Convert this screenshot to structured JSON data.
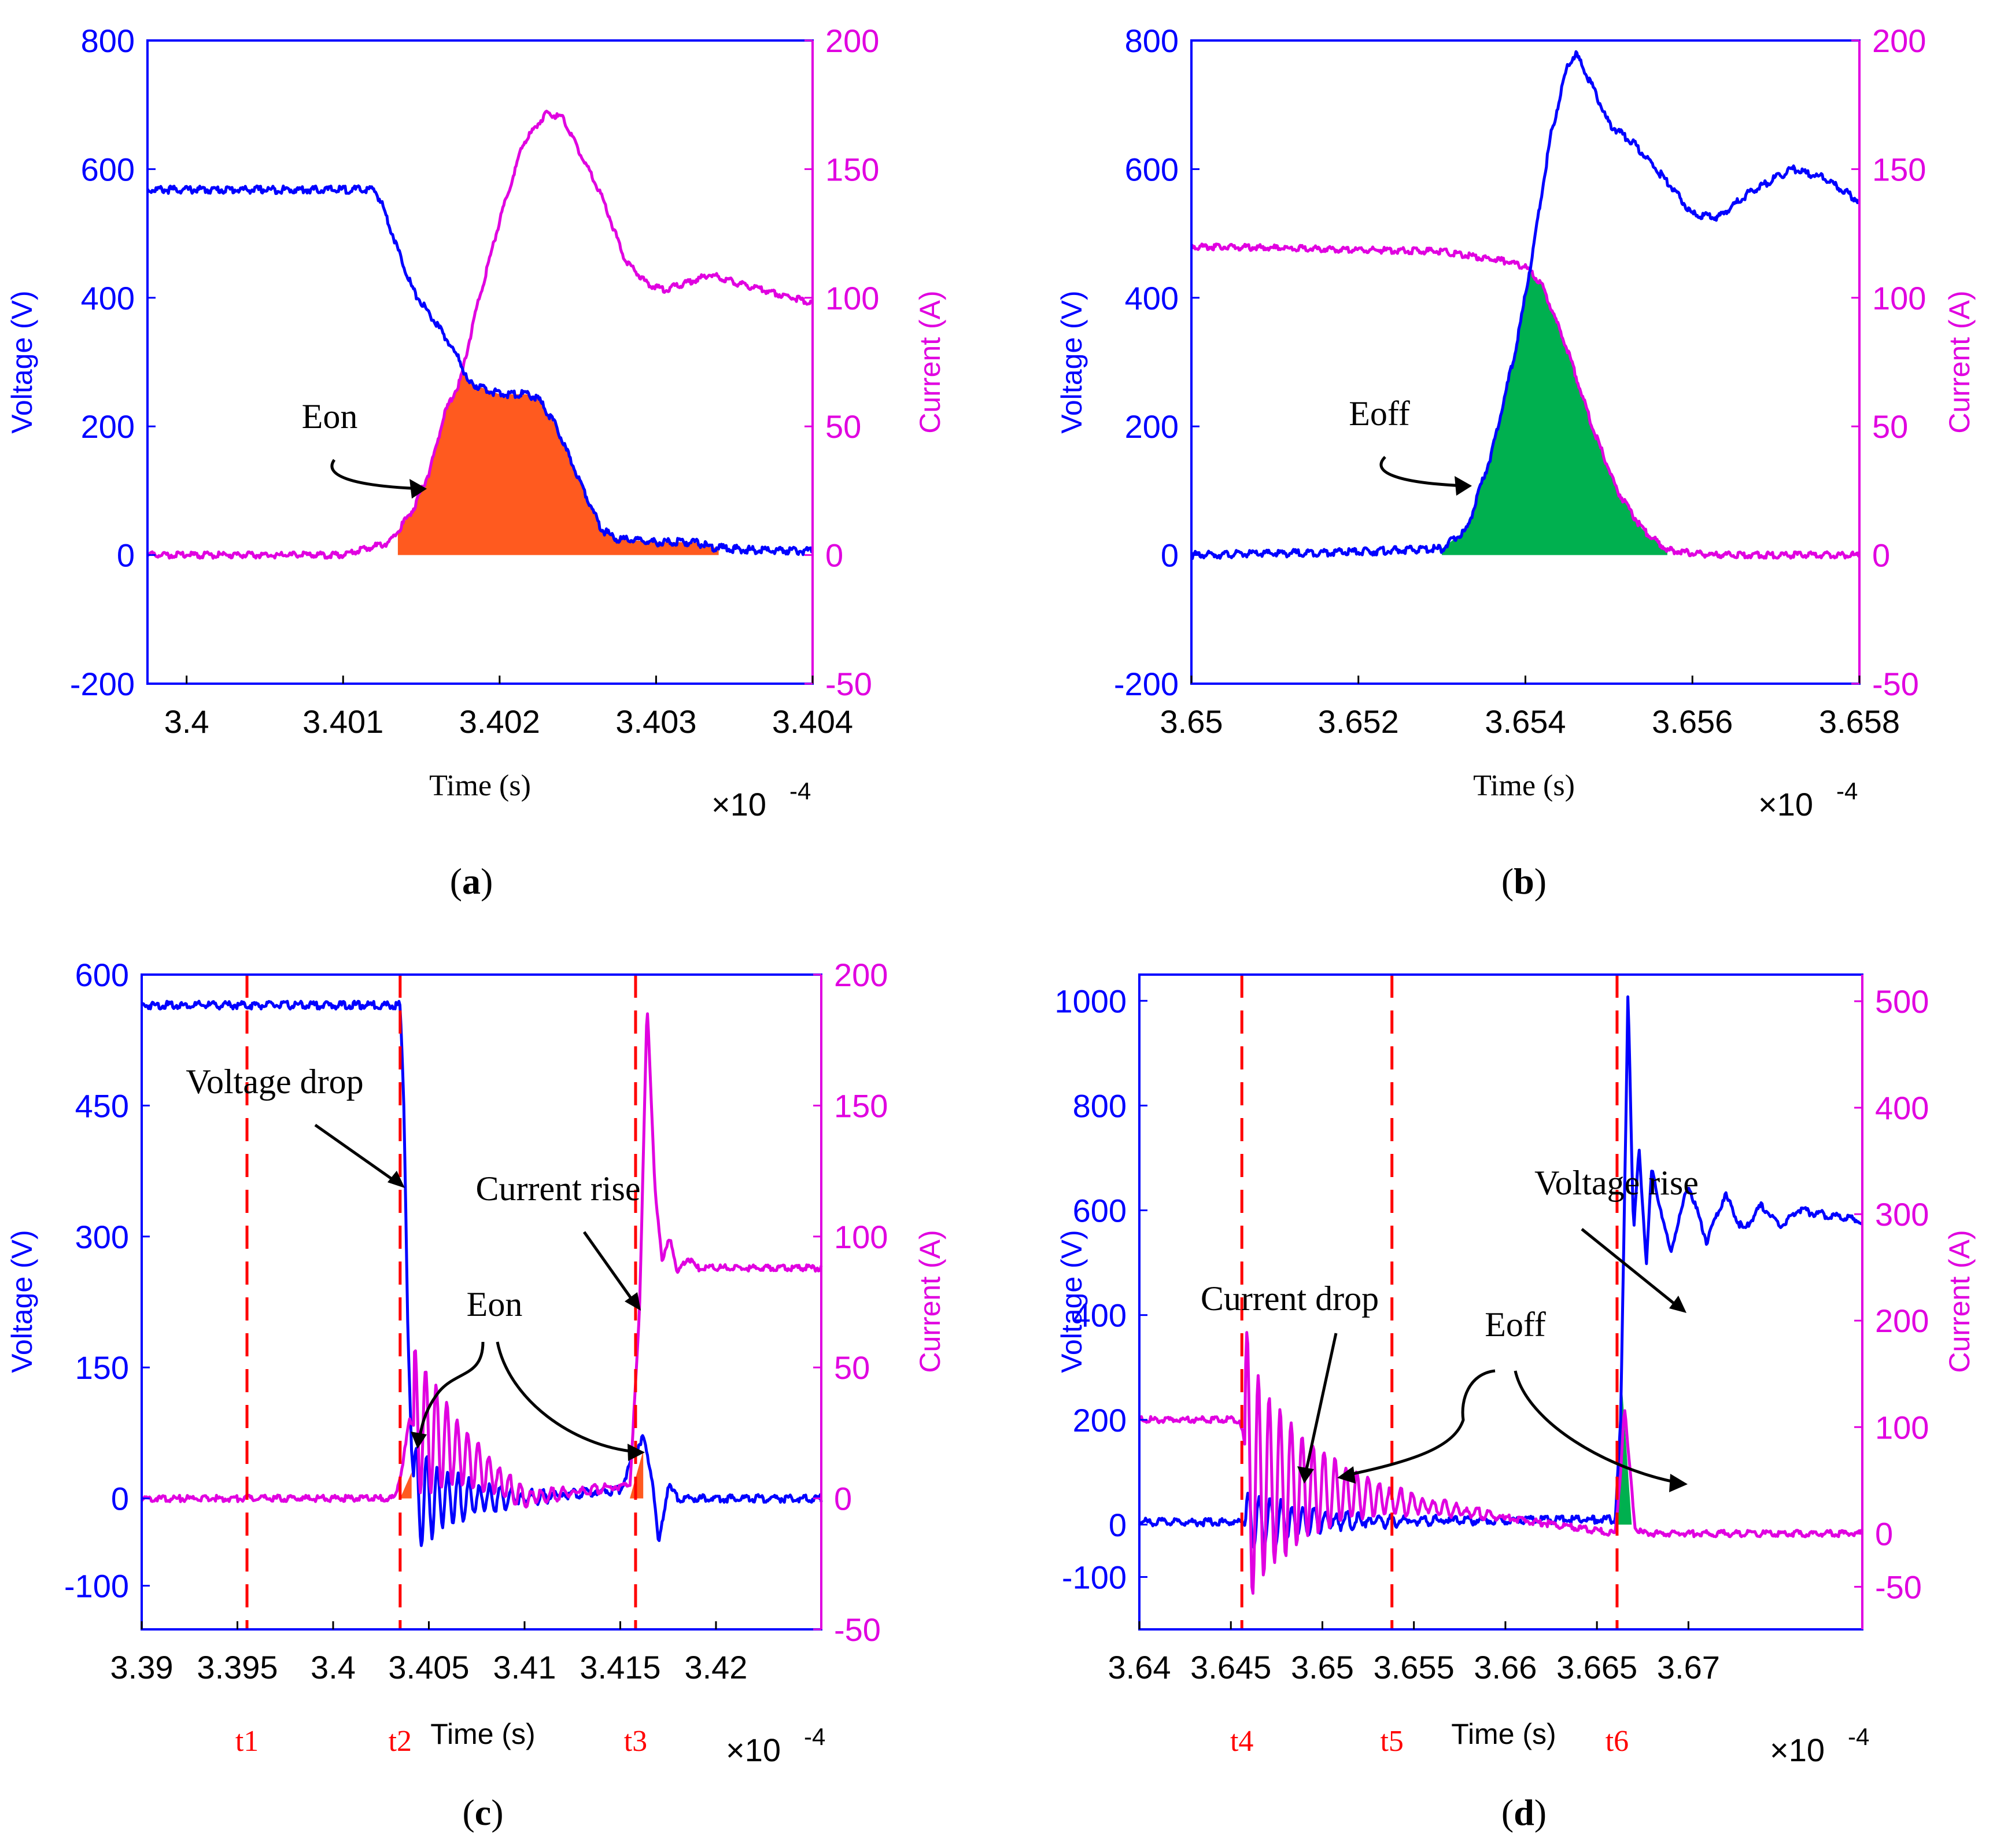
{
  "colors": {
    "voltage": "#0000ff",
    "current": "#e000e0",
    "eon_fill": "#ff5a1f",
    "eoff_fill": "#00b04f",
    "marker": "#ff0000",
    "text": "#000000"
  },
  "chart_data": [
    {
      "id": "a",
      "type": "line",
      "caption_letter": "a",
      "xlabel": "Time (s)",
      "ylabel_left": "Voltage (V)",
      "ylabel_right": "Current (A)",
      "xlim": [
        3.39975,
        3.404
      ],
      "ylim_left": [
        -200,
        800
      ],
      "ylim_right": [
        -50,
        200
      ],
      "x_ticks": [
        3.4,
        3.401,
        3.402,
        3.403,
        3.404
      ],
      "x_tick_labels": [
        "3.4",
        "3.401",
        "3.402",
        "3.403",
        "3.404"
      ],
      "y_left_ticks": [
        -200,
        0,
        200,
        400,
        600,
        800
      ],
      "y_left_tick_labels": [
        "-200",
        "0",
        "200",
        "400",
        "600",
        "800"
      ],
      "y_right_ticks": [
        -50,
        0,
        50,
        100,
        150,
        200
      ],
      "y_right_tick_labels": [
        "-50",
        "0",
        "50",
        "100",
        "150",
        "200"
      ],
      "x_exponent": {
        "base": "×10",
        "exp": "-4"
      },
      "series": [
        {
          "name": "Voltage",
          "axis": "left",
          "x": [
            3.39975,
            3.4012,
            3.40125,
            3.40135,
            3.40145,
            3.40155,
            3.40165,
            3.40175,
            3.4018,
            3.402,
            3.40218,
            3.40225,
            3.40235,
            3.40245,
            3.40255,
            3.40265,
            3.40275,
            3.403,
            3.40325,
            3.40335,
            3.4036,
            3.404
          ],
          "values": [
            568,
            568,
            545,
            475,
            410,
            375,
            340,
            300,
            268,
            250,
            250,
            242,
            205,
            150,
            95,
            40,
            25,
            20,
            20,
            12,
            8,
            6
          ]
        },
        {
          "name": "Current",
          "axis": "right",
          "x": [
            3.39975,
            3.401,
            3.4013,
            3.40145,
            3.40155,
            3.40165,
            3.40175,
            3.40185,
            3.402,
            3.40215,
            3.4023,
            3.4024,
            3.4025,
            3.40265,
            3.4028,
            3.40295,
            3.40305,
            3.4032,
            3.40335,
            3.4035,
            3.404
          ],
          "values": [
            0,
            0,
            5,
            18,
            32,
            55,
            68,
            95,
            130,
            160,
            172,
            170,
            158,
            140,
            115,
            105,
            103,
            106,
            109,
            106,
            98
          ]
        }
      ],
      "fill": {
        "label": "Eon",
        "x_start": 3.40135,
        "x_end": 3.4034
      }
    },
    {
      "id": "b",
      "type": "line",
      "caption_letter": "b",
      "xlabel": "Time (s)",
      "ylabel_left": "Voltage (V)",
      "ylabel_right": "Current (A)",
      "xlim": [
        3.65,
        3.658
      ],
      "ylim_left": [
        -200,
        800
      ],
      "ylim_right": [
        -50,
        200
      ],
      "x_ticks": [
        3.65,
        3.652,
        3.654,
        3.656,
        3.658
      ],
      "x_tick_labels": [
        "3.65",
        "3.652",
        "3.654",
        "3.656",
        "3.658"
      ],
      "y_left_ticks": [
        -200,
        0,
        200,
        400,
        600,
        800
      ],
      "y_left_tick_labels": [
        "-200",
        "0",
        "200",
        "400",
        "600",
        "800"
      ],
      "y_right_ticks": [
        -50,
        0,
        50,
        100,
        150,
        200
      ],
      "y_right_tick_labels": [
        "-50",
        "0",
        "50",
        "100",
        "150",
        "200"
      ],
      "x_exponent": {
        "base": "×10",
        "exp": "-4"
      },
      "series": [
        {
          "name": "Voltage",
          "axis": "left",
          "x": [
            3.65,
            3.652,
            3.653,
            3.6533,
            3.6536,
            3.6539,
            3.6541,
            3.6543,
            3.6545,
            3.6546,
            3.6548,
            3.655,
            3.6553,
            3.6557,
            3.656,
            3.6563,
            3.6567,
            3.6572,
            3.6576,
            3.658
          ],
          "values": [
            0,
            5,
            10,
            40,
            160,
            330,
            480,
            650,
            760,
            780,
            730,
            670,
            640,
            580,
            530,
            525,
            565,
            600,
            585,
            550
          ]
        },
        {
          "name": "Current",
          "axis": "right",
          "x": [
            3.65,
            3.653,
            3.6538,
            3.654,
            3.6542,
            3.6545,
            3.6548,
            3.6551,
            3.6554,
            3.6557,
            3.6562,
            3.658
          ],
          "values": [
            120,
            118,
            114,
            112,
            105,
            80,
            50,
            25,
            10,
            2,
            0,
            0
          ]
        }
      ],
      "fill": {
        "label": "Eoff",
        "x_start": 3.653,
        "x_end": 3.6557
      }
    },
    {
      "id": "c",
      "type": "line",
      "caption_letter": "c",
      "xlabel": "Time (s)",
      "ylabel_left": "Voltage (V)",
      "ylabel_right": "Current (A)",
      "xlim": [
        3.39,
        3.4255
      ],
      "ylim_left": [
        -150,
        600
      ],
      "ylim_right": [
        -50,
        200
      ],
      "x_ticks": [
        3.39,
        3.395,
        3.4,
        3.405,
        3.41,
        3.415,
        3.42
      ],
      "x_tick_labels": [
        "3.39",
        "3.395",
        "3.4",
        "3.405",
        "3.41",
        "3.415",
        "3.42"
      ],
      "y_left_ticks": [
        -100,
        0,
        150,
        300,
        450,
        600
      ],
      "y_left_tick_labels": [
        "-100",
        "0",
        "150",
        "300",
        "450",
        "600"
      ],
      "y_right_ticks": [
        -50,
        0,
        50,
        100,
        150,
        200
      ],
      "y_right_tick_labels": [
        "-50",
        "0",
        "50",
        "100",
        "150",
        "200"
      ],
      "x_exponent": {
        "base": "×10",
        "exp": "-4"
      },
      "series": [
        {
          "name": "Voltage",
          "axis": "left",
          "x": [
            3.39,
            3.4035,
            3.4037,
            3.4039,
            3.4041,
            3.4043,
            3.405,
            3.41,
            3.415,
            3.4158,
            3.4162,
            3.4167,
            3.417,
            3.4175,
            3.418,
            3.4255
          ],
          "values": [
            565,
            565,
            450,
            200,
            50,
            0,
            0,
            0,
            10,
            55,
            70,
            20,
            -55,
            15,
            0,
            0
          ]
        },
        {
          "name": "Current",
          "axis": "right",
          "x": [
            3.39,
            3.4032,
            3.4036,
            3.404,
            3.41,
            3.4155,
            3.416,
            3.4164,
            3.4168,
            3.4172,
            3.4176,
            3.418,
            3.4185,
            3.419,
            3.42,
            3.4255
          ],
          "values": [
            0,
            0,
            12,
            30,
            0,
            5,
            70,
            190,
            120,
            90,
            100,
            86,
            92,
            88,
            88,
            88
          ]
        }
      ],
      "markers": [
        {
          "label": "t1",
          "x": 3.3955
        },
        {
          "label": "t2",
          "x": 3.4035
        },
        {
          "label": "t3",
          "x": 3.4158
        }
      ],
      "annotations": [
        "Voltage drop",
        "Eon",
        "Current rise"
      ]
    },
    {
      "id": "d",
      "type": "line",
      "caption_letter": "d",
      "xlabel": "Time (s)",
      "ylabel_left": "Voltage (V)",
      "ylabel_right": "Current (A)",
      "xlim": [
        3.64,
        3.6795
      ],
      "ylim_left": [
        -200,
        1050
      ],
      "ylim_right": [
        -90,
        525
      ],
      "x_ticks": [
        3.64,
        3.645,
        3.65,
        3.655,
        3.66,
        3.665,
        3.67
      ],
      "x_tick_labels": [
        "3.64",
        "3.645",
        "3.65",
        "3.655",
        "3.66",
        "3.665",
        "3.67"
      ],
      "y_left_ticks": [
        -100,
        0,
        200,
        400,
        600,
        800,
        1000
      ],
      "y_left_tick_labels": [
        "-100",
        "0",
        "200",
        "400",
        "600",
        "800",
        "1000"
      ],
      "y_right_ticks": [
        -50,
        0,
        100,
        200,
        300,
        400,
        500
      ],
      "y_right_tick_labels": [
        "-50",
        "0",
        "100",
        "200",
        "300",
        "400",
        "500"
      ],
      "x_exponent": {
        "base": "×10",
        "exp": "-4"
      },
      "series": [
        {
          "name": "Voltage",
          "axis": "left",
          "x": [
            3.64,
            3.6456,
            3.666,
            3.6663,
            3.6665,
            3.6667,
            3.667,
            3.6673,
            3.6677,
            3.668,
            3.669,
            3.67,
            3.671,
            3.672,
            3.673,
            3.674,
            3.675,
            3.676,
            3.6795
          ],
          "values": [
            5,
            5,
            10,
            200,
            600,
            1030,
            550,
            720,
            500,
            680,
            520,
            650,
            540,
            630,
            560,
            610,
            570,
            600,
            580
          ]
        },
        {
          "name": "Current",
          "axis": "right",
          "x": [
            3.64,
            3.6455,
            3.6458,
            3.6461,
            3.666,
            3.6663,
            3.6665,
            3.6668,
            3.6671,
            3.6675,
            3.6795
          ],
          "values": [
            107,
            107,
            80,
            50,
            0,
            60,
            120,
            60,
            5,
            0,
            0
          ]
        }
      ],
      "markers": [
        {
          "label": "t4",
          "x": 3.6456
        },
        {
          "label": "t5",
          "x": 3.6538
        },
        {
          "label": "t6",
          "x": 3.6661
        }
      ],
      "annotations": [
        "Current drop",
        "Eoff",
        "Voltage rise"
      ]
    }
  ]
}
